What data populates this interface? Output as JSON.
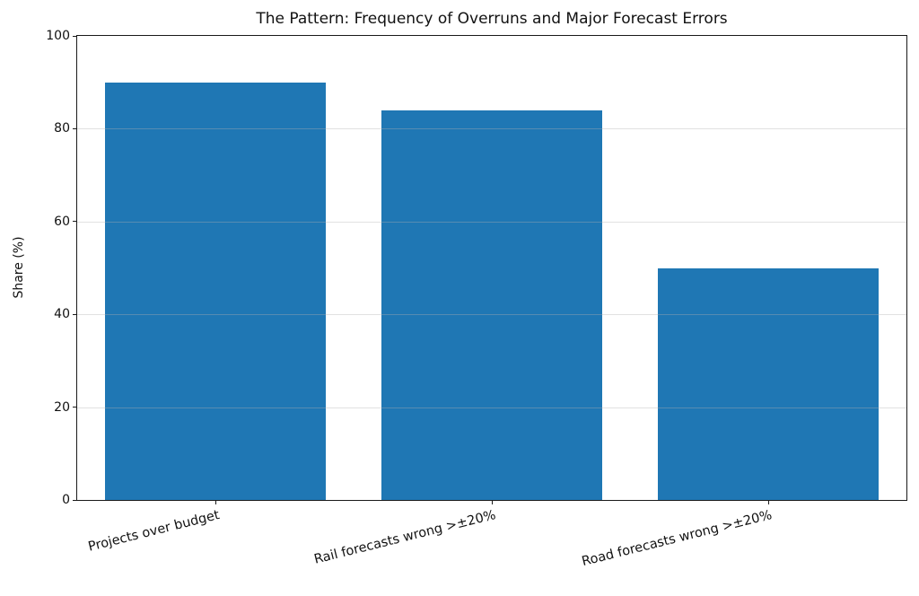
{
  "chart_data": {
    "type": "bar",
    "title": "The Pattern: Frequency of Overruns and Major Forecast Errors",
    "categories": [
      "Projects over budget",
      "Rail forecasts wrong >±20%",
      "Road forecasts wrong >±20%"
    ],
    "values": [
      90,
      84,
      50
    ],
    "xlabel": "",
    "ylabel": "Share (%)",
    "ylim": [
      0,
      100
    ],
    "yticks": [
      0,
      20,
      40,
      60,
      80,
      100
    ],
    "bar_color": "#1f77b4",
    "bar_width_fraction": 0.8,
    "grid": "horizontal gridlines at y ticks, light gray, drawn over bars",
    "legend": "none",
    "xtick_rotation_deg": 14
  }
}
